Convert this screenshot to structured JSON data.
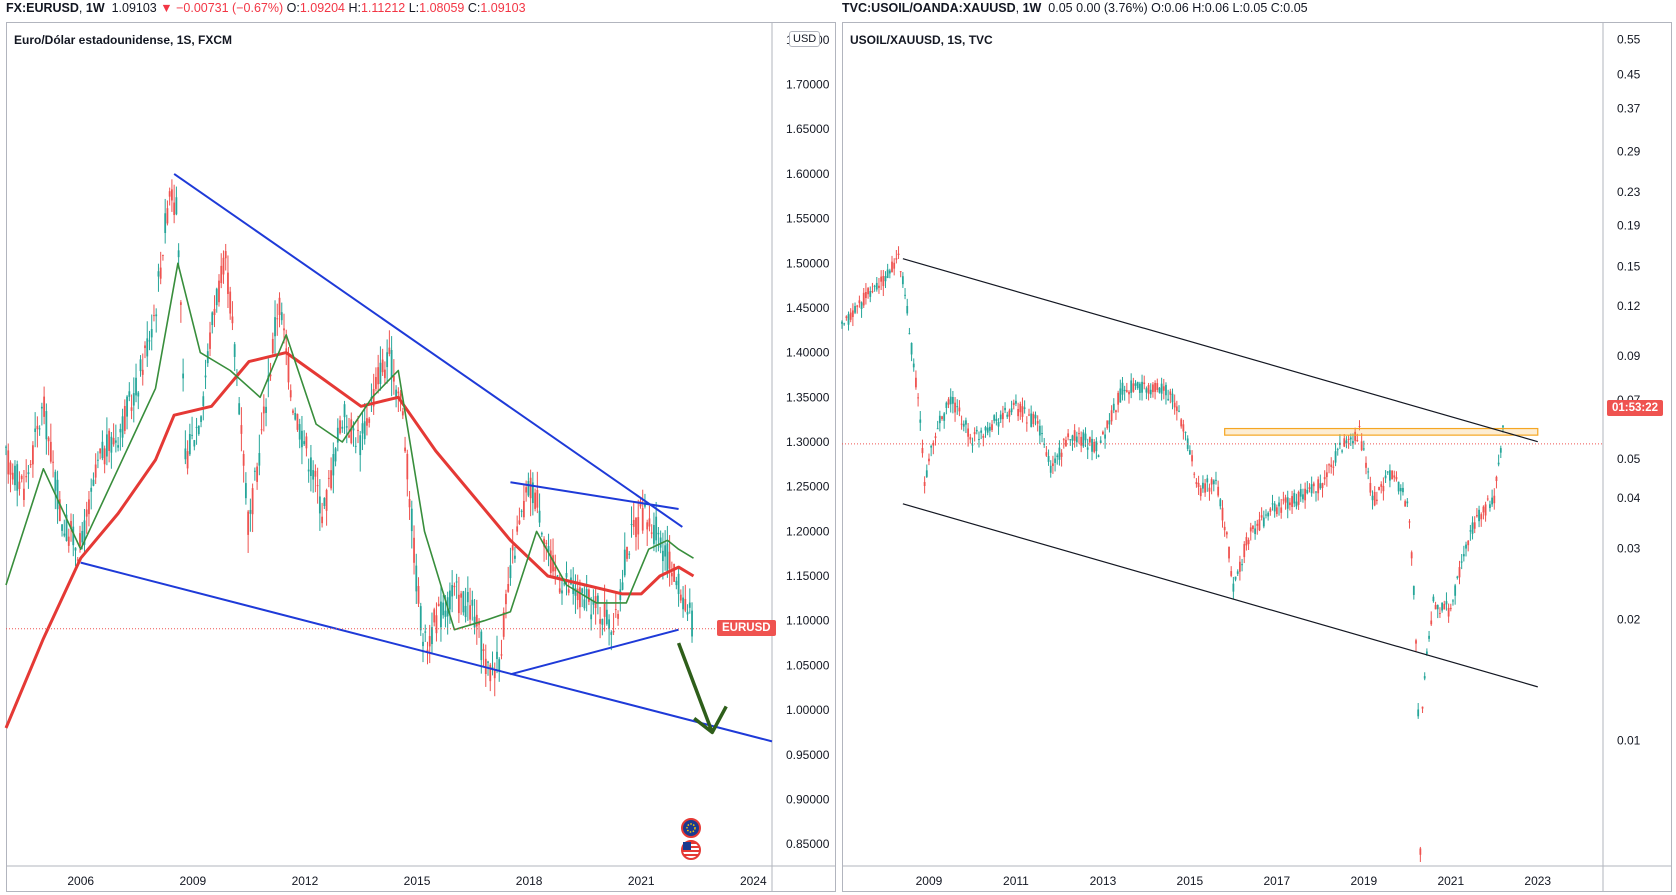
{
  "left": {
    "header": {
      "symbol": "FX:EURUSD",
      "interval": "1W",
      "last": "1.09103",
      "change": "▼ −0.00731 (−0.67%)",
      "o_label": "O:",
      "o": "1.09204",
      "h_label": "H:",
      "h": "1.11212",
      "l_label": "L:",
      "l": "1.08059",
      "c_label": "C:",
      "c": "1.09103"
    },
    "legend": "Euro/Dólar estadounidense, 1S, FXCM",
    "unit": "USD",
    "price_badge": "EURUSD",
    "flag_icons": [
      "eu-flag-icon",
      "us-flag-icon"
    ]
  },
  "right": {
    "header": {
      "symbol": "TVC:USOIL/OANDA:XAUUSD",
      "interval": "1W",
      "last": "0.05",
      "change": "0.00 (3.76%)",
      "o_label": "O:",
      "o": "0.06",
      "h_label": "H:",
      "h": "0.06",
      "l_label": "L:",
      "l": "0.05",
      "c_label": "C:",
      "c": "0.05"
    },
    "legend": "USOIL/XAUUSD, 1S, TVC",
    "countdown_badge": "01:53:22"
  },
  "colors": {
    "up": "#26a69a",
    "down": "#ef5350",
    "ma_slow": "#e53935",
    "ma_fast": "#388e3c",
    "trend": "#1e3ad8",
    "arrow": "#2e5e1a",
    "channel": "#131722",
    "zone": "#f5a623"
  },
  "chart_data": [
    {
      "type": "line",
      "subtype": "candlestick",
      "title": "Euro/Dólar estadounidense, 1S, FXCM",
      "x_ticks": [
        "2006",
        "2009",
        "2012",
        "2015",
        "2018",
        "2021",
        "2024"
      ],
      "y_ticks": [
        "1.75000",
        "1.70000",
        "1.65000",
        "1.60000",
        "1.55000",
        "1.50000",
        "1.45000",
        "1.40000",
        "1.35000",
        "1.30000",
        "1.25000",
        "1.20000",
        "1.15000",
        "1.10000",
        "1.05000",
        "1.00000",
        "0.95000",
        "0.90000",
        "0.85000"
      ],
      "ylim": [
        0.83,
        1.77
      ],
      "xlim": [
        2004.0,
        2024.5
      ],
      "last_price": 1.09103,
      "series": [
        {
          "name": "",
          "role": "price",
          "x": [
            2004.0,
            2004.5,
            2005.0,
            2005.5,
            2006.0,
            2006.5,
            2007.0,
            2007.5,
            2008.0,
            2008.4,
            2008.6,
            2008.8,
            2009.2,
            2009.6,
            2009.9,
            2010.3,
            2010.5,
            2011.0,
            2011.3,
            2011.7,
            2012.0,
            2012.5,
            2013.0,
            2013.5,
            2014.0,
            2014.3,
            2014.6,
            2015.0,
            2015.2,
            2015.5,
            2016.0,
            2016.5,
            2016.9,
            2017.2,
            2017.6,
            2018.0,
            2018.2,
            2018.6,
            2019.0,
            2019.5,
            2020.0,
            2020.3,
            2020.6,
            2021.0,
            2021.4,
            2021.8,
            2022.0,
            2022.2,
            2022.4
          ],
          "y": [
            1.28,
            1.25,
            1.34,
            1.21,
            1.18,
            1.28,
            1.31,
            1.36,
            1.45,
            1.59,
            1.55,
            1.28,
            1.33,
            1.46,
            1.5,
            1.32,
            1.2,
            1.36,
            1.46,
            1.34,
            1.3,
            1.22,
            1.33,
            1.3,
            1.38,
            1.39,
            1.34,
            1.14,
            1.07,
            1.1,
            1.13,
            1.11,
            1.04,
            1.06,
            1.18,
            1.25,
            1.24,
            1.16,
            1.14,
            1.12,
            1.11,
            1.09,
            1.18,
            1.22,
            1.2,
            1.16,
            1.14,
            1.12,
            1.09
          ]
        },
        {
          "name": "",
          "role": "slow moving average",
          "x": [
            2004.0,
            2005.0,
            2006.0,
            2007.0,
            2008.0,
            2008.5,
            2009.5,
            2010.5,
            2011.5,
            2012.5,
            2013.5,
            2014.5,
            2015.5,
            2016.5,
            2017.5,
            2018.5,
            2019.5,
            2020.5,
            2021.0,
            2021.5,
            2022.0,
            2022.4
          ],
          "y": [
            0.98,
            1.08,
            1.17,
            1.22,
            1.28,
            1.33,
            1.34,
            1.39,
            1.4,
            1.37,
            1.34,
            1.35,
            1.29,
            1.24,
            1.19,
            1.15,
            1.14,
            1.13,
            1.13,
            1.15,
            1.16,
            1.15
          ]
        },
        {
          "name": "",
          "role": "fast moving average",
          "x": [
            2004.0,
            2005.0,
            2006.0,
            2007.0,
            2008.0,
            2008.6,
            2009.2,
            2010.0,
            2010.8,
            2011.5,
            2012.3,
            2013.0,
            2013.8,
            2014.5,
            2015.2,
            2016.0,
            2016.8,
            2017.5,
            2018.2,
            2019.0,
            2019.8,
            2020.6,
            2021.2,
            2021.7,
            2022.0,
            2022.4
          ],
          "y": [
            1.14,
            1.27,
            1.18,
            1.27,
            1.36,
            1.5,
            1.4,
            1.38,
            1.35,
            1.42,
            1.32,
            1.3,
            1.35,
            1.38,
            1.2,
            1.09,
            1.1,
            1.11,
            1.2,
            1.14,
            1.12,
            1.12,
            1.18,
            1.19,
            1.18,
            1.17
          ]
        }
      ],
      "trendlines": [
        {
          "role": "upper resistance",
          "from": [
            2008.5,
            1.6
          ],
          "to": [
            2022.1,
            1.205
          ]
        },
        {
          "role": "lower support",
          "from": [
            2006.0,
            1.165
          ],
          "to": [
            2024.5,
            0.965
          ]
        },
        {
          "role": "triangle top",
          "from": [
            2017.5,
            1.255
          ],
          "to": [
            2022.0,
            1.225
          ]
        },
        {
          "role": "triangle bottom",
          "from": [
            2017.5,
            1.04
          ],
          "to": [
            2022.0,
            1.09
          ]
        }
      ],
      "arrow": {
        "from": [
          2022.0,
          1.075
        ],
        "to": [
          2022.9,
          0.975
        ]
      }
    },
    {
      "type": "line",
      "subtype": "candlestick",
      "title": "USOIL/XAUUSD, 1S, TVC",
      "x_ticks": [
        "2009",
        "2011",
        "2013",
        "2015",
        "2017",
        "2019",
        "2021",
        "2023"
      ],
      "y_ticks": [
        "0.55",
        "0.45",
        "0.37",
        "0.29",
        "0.23",
        "0.19",
        "0.15",
        "0.12",
        "0.09",
        "0.07",
        "0.05",
        "0.04",
        "0.03",
        "0.02",
        "0.01"
      ],
      "log_scale": true,
      "ylim": [
        0.005,
        0.58
      ],
      "xlim": [
        2007.0,
        2024.5
      ],
      "last_price": 0.0545,
      "series": [
        {
          "name": "",
          "role": "price",
          "x": [
            2007.0,
            2007.5,
            2008.0,
            2008.3,
            2008.6,
            2008.9,
            2009.2,
            2009.5,
            2010.0,
            2010.5,
            2011.0,
            2011.5,
            2011.8,
            2012.3,
            2012.9,
            2013.5,
            2014.0,
            2014.4,
            2014.8,
            2015.2,
            2015.6,
            2016.0,
            2016.4,
            2017.0,
            2017.5,
            2018.0,
            2018.6,
            2018.9,
            2019.2,
            2019.6,
            2020.0,
            2020.2,
            2020.3,
            2020.35,
            2020.6,
            2021.0,
            2021.5,
            2022.0,
            2022.2
          ],
          "y": [
            0.105,
            0.125,
            0.14,
            0.158,
            0.095,
            0.044,
            0.06,
            0.07,
            0.056,
            0.062,
            0.067,
            0.061,
            0.047,
            0.058,
            0.053,
            0.076,
            0.074,
            0.076,
            0.063,
            0.042,
            0.044,
            0.024,
            0.033,
            0.038,
            0.04,
            0.043,
            0.056,
            0.058,
            0.039,
            0.046,
            0.039,
            0.018,
            0.0052,
            0.012,
            0.022,
            0.021,
            0.034,
            0.04,
            0.058
          ]
        }
      ],
      "trendlines": [
        {
          "role": "upper channel",
          "from": [
            2008.4,
            0.157
          ],
          "to": [
            2023.0,
            0.0552
          ]
        },
        {
          "role": "lower channel",
          "from": [
            2008.4,
            0.0387
          ],
          "to": [
            2023.0,
            0.0136
          ]
        }
      ],
      "zone": {
        "x": [
          2015.8,
          2023.0
        ],
        "y": [
          0.0573,
          0.0595
        ]
      }
    }
  ]
}
